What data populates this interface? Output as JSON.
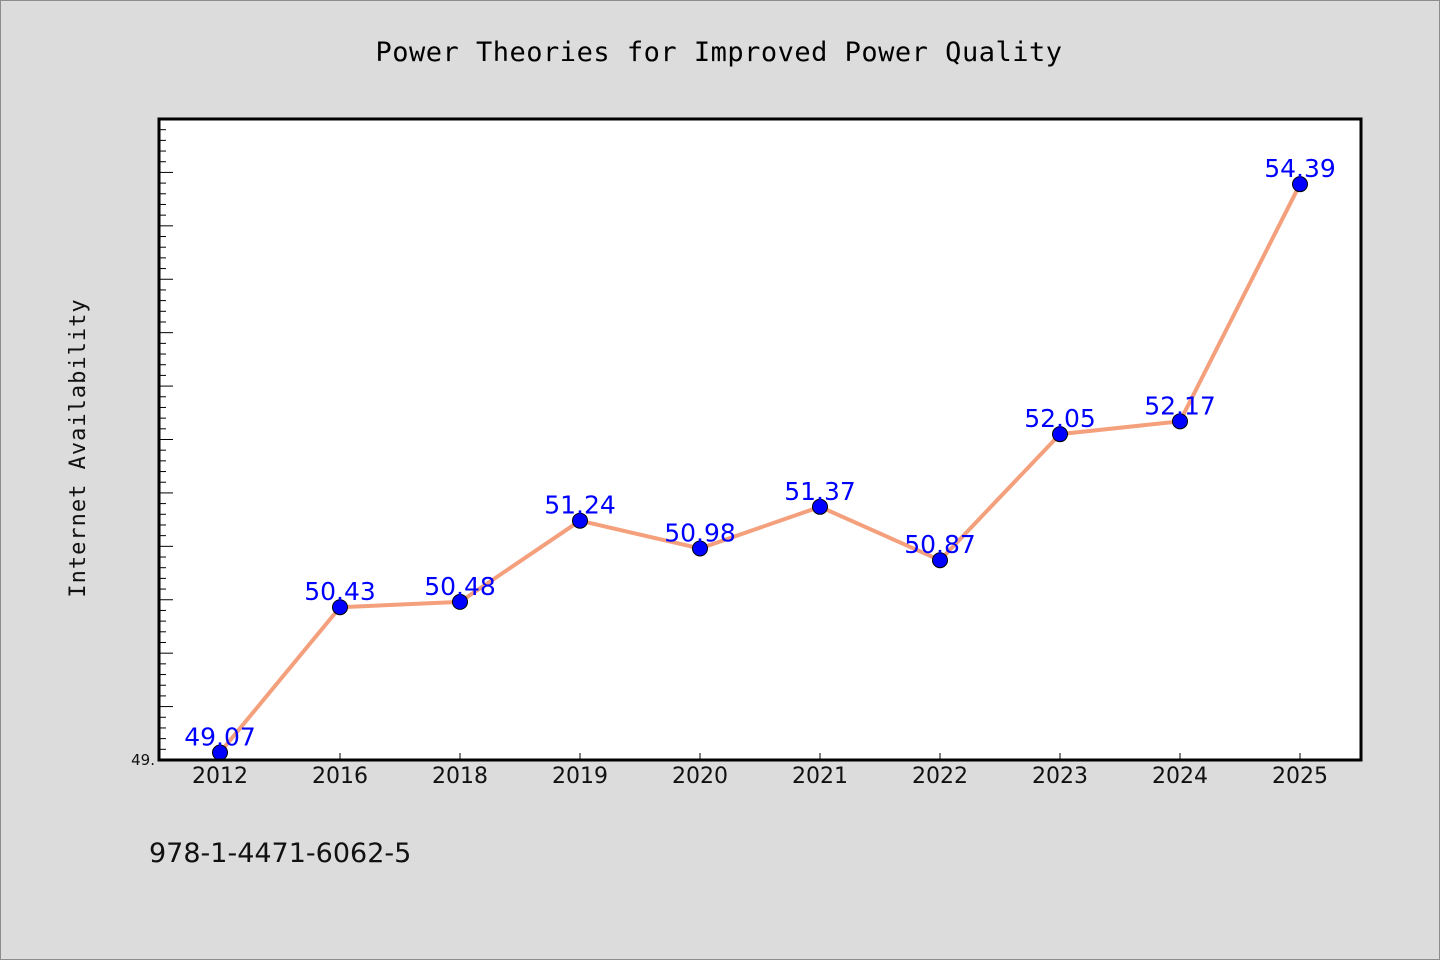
{
  "chart_data": {
    "type": "line",
    "title": "Power Theories for Improved Power Quality",
    "xlabel": "",
    "ylabel": "Internet Availability",
    "categories": [
      "2012",
      "2016",
      "2018",
      "2019",
      "2020",
      "2021",
      "2022",
      "2023",
      "2024",
      "2025"
    ],
    "series": [
      {
        "values": [
          49.07,
          50.43,
          50.48,
          51.24,
          50.98,
          51.37,
          50.87,
          52.05,
          52.17,
          54.39
        ],
        "data_labels": [
          "49.07",
          "50.43",
          "50.48",
          "51.24",
          "50.98",
          "51.37",
          "50.87",
          "52.05",
          "52.17",
          "54.39"
        ],
        "line_color": "#f4a07c",
        "marker_color": "#0000ff"
      }
    ],
    "ylim": [
      49.0,
      55.0
    ],
    "yticks": [
      {
        "value": 49.0,
        "label": "49."
      }
    ],
    "grid": false,
    "legend": "none"
  },
  "footnote": "978-1-4471-6062-5",
  "colors": {
    "background": "#dcdcdc",
    "plot_background": "#ffffff",
    "line": "#f4a07c",
    "marker": "#0000ff",
    "data_label": "#0000ff"
  }
}
